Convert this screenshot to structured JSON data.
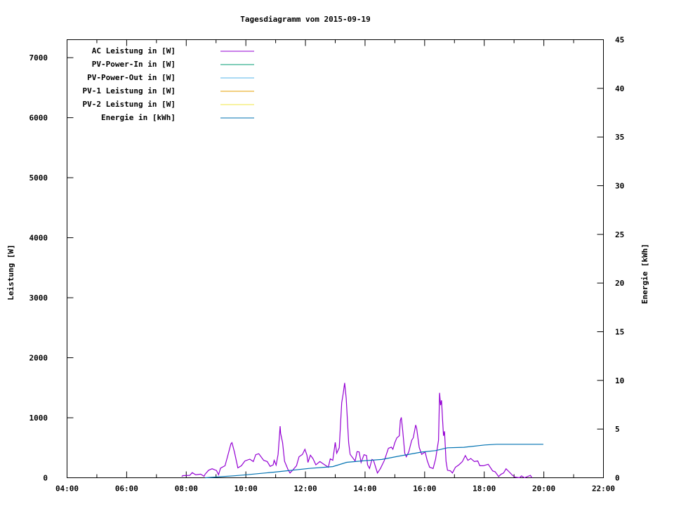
{
  "chart_data": {
    "type": "line",
    "title": "Tagesdiagramm vom 2015-09-19",
    "xlabel": "",
    "ylabel": "Leistung [W]",
    "y2label": "Energie [kWh]",
    "xlim": [
      "04:00",
      "22:00"
    ],
    "xticks": [
      "04:00",
      "06:00",
      "08:00",
      "10:00",
      "12:00",
      "14:00",
      "16:00",
      "18:00",
      "20:00",
      "22:00"
    ],
    "ylim": [
      0,
      7300
    ],
    "yticks": [
      0,
      1000,
      2000,
      3000,
      4000,
      5000,
      6000,
      7000
    ],
    "y2lim": [
      0,
      45
    ],
    "y2ticks": [
      0,
      5,
      10,
      15,
      20,
      25,
      30,
      35,
      40,
      45
    ],
    "grid": false,
    "legend_placement": "top-left",
    "series": [
      {
        "name": "AC Leistung in [W]",
        "axis": "y",
        "color": "#9400d3",
        "x": [
          "07:51",
          "07:53",
          "08:07",
          "08:12",
          "08:19",
          "08:29",
          "08:36",
          "08:38",
          "08:45",
          "08:52",
          "09:01",
          "09:05",
          "09:09",
          "09:18",
          "09:23",
          "09:30",
          "09:32",
          "09:37",
          "09:44",
          "09:51",
          "09:58",
          "10:08",
          "10:15",
          "10:20",
          "10:26",
          "10:36",
          "10:43",
          "10:49",
          "10:55",
          "10:57",
          "11:01",
          "11:05",
          "11:09",
          "11:10",
          "11:14",
          "11:18",
          "11:25",
          "11:29",
          "11:35",
          "11:42",
          "11:47",
          "11:54",
          "11:59",
          "12:03",
          "12:05",
          "12:10",
          "12:15",
          "12:21",
          "12:29",
          "12:36",
          "12:46",
          "12:50",
          "12:55",
          "13:00",
          "13:03",
          "13:08",
          "13:13",
          "13:16",
          "13:19",
          "13:22",
          "13:27",
          "13:30",
          "13:40",
          "13:44",
          "13:48",
          "13:52",
          "13:58",
          "14:03",
          "14:05",
          "14:09",
          "14:14",
          "14:17",
          "14:25",
          "14:31",
          "14:39",
          "14:47",
          "14:53",
          "14:56",
          "15:00",
          "15:04",
          "15:09",
          "15:11",
          "15:13",
          "15:16",
          "15:20",
          "15:23",
          "15:28",
          "15:34",
          "15:37",
          "15:42",
          "15:44",
          "15:49",
          "15:54",
          "16:01",
          "16:05",
          "16:10",
          "16:17",
          "16:22",
          "16:28",
          "16:30",
          "16:32",
          "16:34",
          "16:36",
          "16:38",
          "16:40",
          "16:41",
          "16:43",
          "16:46",
          "16:52",
          "16:56",
          "17:02",
          "17:09",
          "17:16",
          "17:22",
          "17:27",
          "17:33",
          "17:40",
          "17:47",
          "17:51",
          "17:58",
          "18:08",
          "18:17",
          "18:22",
          "18:29",
          "18:34",
          "18:39",
          "18:44",
          "18:50",
          "18:57",
          "19:02",
          "19:11",
          "19:15",
          "19:21",
          "19:33",
          "19:36"
        ],
        "values": [
          20,
          35,
          40,
          85,
          50,
          60,
          25,
          60,
          125,
          150,
          120,
          50,
          160,
          200,
          350,
          565,
          585,
          430,
          165,
          200,
          280,
          310,
          270,
          385,
          400,
          290,
          270,
          190,
          215,
          290,
          210,
          390,
          860,
          740,
          585,
          275,
          135,
          80,
          135,
          200,
          350,
          390,
          475,
          375,
          255,
          375,
          320,
          215,
          270,
          230,
          175,
          315,
          290,
          590,
          410,
          500,
          1250,
          1400,
          1580,
          1325,
          585,
          390,
          280,
          435,
          430,
          255,
          385,
          370,
          215,
          155,
          305,
          290,
          80,
          155,
          290,
          490,
          510,
          475,
          585,
          665,
          700,
          955,
          1005,
          775,
          410,
          350,
          430,
          625,
          665,
          880,
          820,
          505,
          390,
          430,
          290,
          175,
          155,
          310,
          625,
          1415,
          1210,
          1290,
          980,
          700,
          775,
          625,
          275,
          125,
          115,
          80,
          175,
          215,
          270,
          370,
          290,
          320,
          270,
          280,
          200,
          200,
          225,
          115,
          100,
          20,
          60,
          80,
          150,
          100,
          40,
          10,
          0,
          30,
          0,
          40,
          0
        ]
      },
      {
        "name": "PV-Power-In in [W]",
        "axis": "y",
        "color": "#009e73",
        "x": [],
        "values": []
      },
      {
        "name": "PV-Power-Out in [W]",
        "axis": "y",
        "color": "#56b4e9",
        "x": [],
        "values": []
      },
      {
        "name": "PV-1 Leistung in [W]",
        "axis": "y",
        "color": "#e69f00",
        "x": [],
        "values": []
      },
      {
        "name": "PV-2 Leistung in [W]",
        "axis": "y",
        "color": "#f0e442",
        "x": [],
        "values": []
      },
      {
        "name": "Energie in [kWh]",
        "axis": "y2",
        "color": "#0072b2",
        "x": [
          "08:38",
          "09:37",
          "10:00",
          "10:57",
          "12:08",
          "12:55",
          "13:23",
          "14:00",
          "14:34",
          "15:07",
          "15:54",
          "16:22",
          "16:46",
          "17:19",
          "18:01",
          "18:25",
          "19:59"
        ],
        "values": [
          0,
          0.2,
          0.3,
          0.58,
          0.96,
          1.15,
          1.59,
          1.75,
          1.88,
          2.21,
          2.64,
          2.79,
          3.08,
          3.13,
          3.37,
          3.44,
          3.44
        ]
      }
    ]
  }
}
